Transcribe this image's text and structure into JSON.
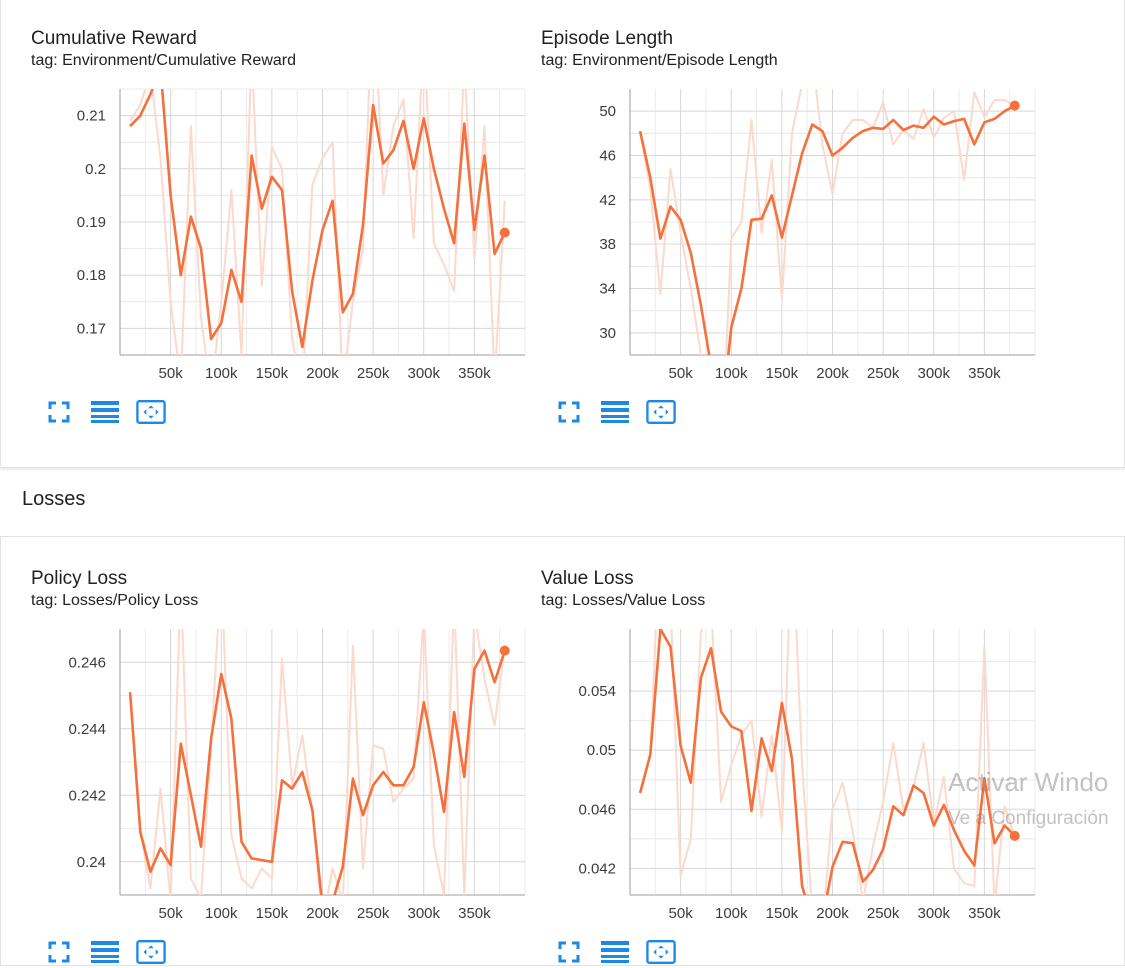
{
  "section": {
    "losses_title": "Losses"
  },
  "icons": [
    "fullscreen-icon",
    "data-table-icon",
    "fit-domain-icon"
  ],
  "colors": {
    "smoothed": "#f4703c",
    "raw": "#fcd9cc",
    "grid": "#d7d7d7"
  },
  "watermark": {
    "line1": "Activar Windo",
    "line2": "Ve a Configuración"
  },
  "chart_data": [
    {
      "id": "cumulative_reward",
      "type": "line",
      "title": "Cumulative Reward",
      "subtitle": "tag: Environment/Cumulative Reward",
      "xlim": [
        0,
        400000
      ],
      "ylim": [
        0.165,
        0.215
      ],
      "xticks": [
        50000,
        100000,
        150000,
        200000,
        250000,
        300000,
        350000
      ],
      "xtick_labels": [
        "50k",
        "100k",
        "150k",
        "200k",
        "250k",
        "300k",
        "350k"
      ],
      "yticks": [
        0.17,
        0.18,
        0.19,
        0.2,
        0.21
      ],
      "ytick_labels": [
        "0.17",
        "0.18",
        "0.19",
        "0.2",
        "0.21"
      ],
      "grid": true,
      "series": [
        {
          "role": "raw",
          "x": [
            10000,
            20000,
            30000,
            40000,
            50000,
            60000,
            70000,
            80000,
            90000,
            100000,
            110000,
            120000,
            130000,
            140000,
            150000,
            160000,
            170000,
            180000,
            190000,
            200000,
            210000,
            220000,
            230000,
            240000,
            250000,
            260000,
            270000,
            280000,
            290000,
            300000,
            310000,
            320000,
            330000,
            340000,
            350000,
            360000,
            370000,
            380000
          ],
          "y": [
            0.209,
            0.212,
            0.218,
            0.202,
            0.175,
            0.16,
            0.208,
            0.172,
            0.158,
            0.175,
            0.196,
            0.165,
            0.222,
            0.178,
            0.204,
            0.2,
            0.168,
            0.158,
            0.197,
            0.202,
            0.205,
            0.159,
            0.175,
            0.185,
            0.235,
            0.195,
            0.208,
            0.213,
            0.187,
            0.225,
            0.186,
            0.182,
            0.177,
            0.22,
            0.183,
            0.208,
            0.16,
            0.194
          ]
        },
        {
          "role": "smoothed",
          "x": [
            10000,
            20000,
            30000,
            40000,
            50000,
            60000,
            70000,
            80000,
            90000,
            100000,
            110000,
            120000,
            130000,
            140000,
            150000,
            160000,
            170000,
            180000,
            190000,
            200000,
            210000,
            220000,
            230000,
            240000,
            250000,
            260000,
            270000,
            280000,
            290000,
            300000,
            310000,
            320000,
            330000,
            340000,
            350000,
            360000,
            370000,
            380000
          ],
          "y": [
            0.208,
            0.21,
            0.214,
            0.219,
            0.195,
            0.18,
            0.191,
            0.185,
            0.168,
            0.171,
            0.181,
            0.175,
            0.2025,
            0.1925,
            0.1985,
            0.196,
            0.177,
            0.1665,
            0.179,
            0.1885,
            0.194,
            0.173,
            0.1765,
            0.1895,
            0.212,
            0.201,
            0.2035,
            0.209,
            0.2,
            0.2095,
            0.2,
            0.1925,
            0.186,
            0.2085,
            0.1885,
            0.2025,
            0.184,
            0.188
          ]
        }
      ]
    },
    {
      "id": "episode_length",
      "type": "line",
      "title": "Episode Length",
      "subtitle": "tag: Environment/Episode Length",
      "xlim": [
        0,
        400000
      ],
      "ylim": [
        28,
        52
      ],
      "xticks": [
        50000,
        100000,
        150000,
        200000,
        250000,
        300000,
        350000
      ],
      "xtick_labels": [
        "50k",
        "100k",
        "150k",
        "200k",
        "250k",
        "300k",
        "350k"
      ],
      "yticks": [
        30,
        34,
        38,
        42,
        46,
        50
      ],
      "ytick_labels": [
        "30",
        "34",
        "38",
        "42",
        "46",
        "50"
      ],
      "grid": true,
      "series": [
        {
          "role": "raw",
          "x": [
            10000,
            20000,
            30000,
            40000,
            50000,
            60000,
            70000,
            80000,
            90000,
            100000,
            110000,
            120000,
            130000,
            140000,
            150000,
            160000,
            170000,
            180000,
            190000,
            200000,
            210000,
            220000,
            230000,
            240000,
            250000,
            260000,
            270000,
            280000,
            290000,
            300000,
            310000,
            320000,
            330000,
            340000,
            350000,
            360000,
            370000,
            380000
          ],
          "y": [
            48.2,
            43,
            33.5,
            44.8,
            39,
            34,
            28,
            27,
            18,
            38.5,
            40,
            49.2,
            39,
            45.6,
            33,
            48,
            52.5,
            55,
            47,
            42.5,
            48,
            49.2,
            49.2,
            48.5,
            50.8,
            47,
            48.3,
            47.5,
            50.2,
            47.6,
            49.4,
            50,
            43.8,
            51.7,
            49.5,
            51,
            51,
            50.5
          ]
        },
        {
          "role": "smoothed",
          "x": [
            10000,
            20000,
            30000,
            40000,
            50000,
            60000,
            70000,
            80000,
            90000,
            100000,
            110000,
            120000,
            130000,
            140000,
            150000,
            160000,
            170000,
            180000,
            190000,
            200000,
            210000,
            220000,
            230000,
            240000,
            250000,
            260000,
            270000,
            280000,
            290000,
            300000,
            310000,
            320000,
            330000,
            340000,
            350000,
            360000,
            370000,
            380000
          ],
          "y": [
            48.2,
            44,
            38.5,
            41.4,
            40.2,
            37.2,
            32.5,
            27,
            22,
            30.5,
            34,
            40.2,
            40.3,
            42.4,
            38.6,
            42.4,
            46.2,
            48.8,
            48.2,
            46,
            46.7,
            47.6,
            48.2,
            48.5,
            48.4,
            49.2,
            48.3,
            48.7,
            48.5,
            49.5,
            48.8,
            49.1,
            49.3,
            47,
            49,
            49.3,
            50,
            50.5
          ]
        }
      ]
    },
    {
      "id": "policy_loss",
      "type": "line",
      "title": "Policy Loss",
      "subtitle": "tag: Losses/Policy Loss",
      "xlim": [
        0,
        400000
      ],
      "ylim": [
        0.239,
        0.247
      ],
      "xticks": [
        50000,
        100000,
        150000,
        200000,
        250000,
        300000,
        350000
      ],
      "xtick_labels": [
        "50k",
        "100k",
        "150k",
        "200k",
        "250k",
        "300k",
        "350k"
      ],
      "yticks": [
        0.24,
        0.242,
        0.244,
        0.246
      ],
      "ytick_labels": [
        "0.24",
        "0.242",
        "0.244",
        "0.246"
      ],
      "grid": true,
      "series": [
        {
          "role": "raw",
          "x": [
            10000,
            20000,
            30000,
            40000,
            50000,
            60000,
            70000,
            80000,
            90000,
            100000,
            110000,
            120000,
            130000,
            140000,
            150000,
            160000,
            170000,
            180000,
            190000,
            200000,
            210000,
            220000,
            230000,
            240000,
            250000,
            260000,
            270000,
            280000,
            290000,
            300000,
            310000,
            320000,
            330000,
            340000,
            350000,
            360000,
            370000,
            380000
          ],
          "y": [
            0.245,
            0.2409,
            0.2392,
            0.2422,
            0.2388,
            0.2485,
            0.2395,
            0.2389,
            0.2435,
            0.2488,
            0.2408,
            0.2395,
            0.2392,
            0.2398,
            0.2395,
            0.2461,
            0.2423,
            0.2438,
            0.2415,
            0.2382,
            0.2398,
            0.2388,
            0.2465,
            0.2398,
            0.2435,
            0.2434,
            0.2418,
            0.2422,
            0.2425,
            0.2475,
            0.2405,
            0.239,
            0.248,
            0.239,
            0.2475,
            0.2455,
            0.2441,
            0.2465
          ]
        },
        {
          "role": "smoothed",
          "x": [
            10000,
            20000,
            30000,
            40000,
            50000,
            60000,
            70000,
            80000,
            90000,
            100000,
            110000,
            120000,
            130000,
            140000,
            150000,
            160000,
            170000,
            180000,
            190000,
            200000,
            210000,
            220000,
            230000,
            240000,
            250000,
            260000,
            270000,
            280000,
            290000,
            300000,
            310000,
            320000,
            330000,
            340000,
            350000,
            360000,
            370000,
            380000
          ],
          "y": [
            0.2451,
            0.2409,
            0.2397,
            0.2404,
            0.2399,
            0.24355,
            0.242,
            0.24045,
            0.2437,
            0.24565,
            0.2443,
            0.2406,
            0.2401,
            0.24005,
            0.24,
            0.24245,
            0.2422,
            0.2427,
            0.24155,
            0.23865,
            0.2388,
            0.23985,
            0.2425,
            0.2414,
            0.2423,
            0.2427,
            0.2423,
            0.2423,
            0.24285,
            0.2448,
            0.24325,
            0.2415,
            0.2445,
            0.24255,
            0.2458,
            0.24635,
            0.2454,
            0.24635
          ]
        }
      ]
    },
    {
      "id": "value_loss",
      "type": "line",
      "title": "Value Loss",
      "subtitle": "tag: Losses/Value Loss",
      "xlim": [
        0,
        400000
      ],
      "ylim": [
        0.0402,
        0.0582
      ],
      "xticks": [
        50000,
        100000,
        150000,
        200000,
        250000,
        300000,
        350000
      ],
      "xtick_labels": [
        "50k",
        "100k",
        "150k",
        "200k",
        "250k",
        "300k",
        "350k"
      ],
      "yticks": [
        0.042,
        0.046,
        0.05,
        0.054
      ],
      "ytick_labels": [
        "0.042",
        "0.046",
        "0.05",
        "0.054"
      ],
      "grid": true,
      "series": [
        {
          "role": "raw",
          "x": [
            10000,
            20000,
            30000,
            40000,
            50000,
            60000,
            70000,
            80000,
            90000,
            100000,
            110000,
            120000,
            130000,
            140000,
            150000,
            160000,
            170000,
            180000,
            190000,
            200000,
            210000,
            220000,
            230000,
            240000,
            250000,
            260000,
            270000,
            280000,
            290000,
            300000,
            310000,
            320000,
            330000,
            340000,
            350000,
            360000,
            370000,
            380000
          ],
          "y": [
            0.0471,
            0.0498,
            0.065,
            0.06,
            0.0415,
            0.044,
            0.058,
            0.06,
            0.0465,
            0.049,
            0.051,
            0.052,
            0.0455,
            0.051,
            0.0445,
            0.065,
            0.049,
            0.039,
            0.038,
            0.046,
            0.0478,
            0.0445,
            0.0398,
            0.0435,
            0.0465,
            0.0505,
            0.046,
            0.0475,
            0.0505,
            0.045,
            0.0482,
            0.042,
            0.041,
            0.0408,
            0.057,
            0.0395,
            0.0462,
            0.0442
          ]
        },
        {
          "role": "smoothed",
          "x": [
            10000,
            20000,
            30000,
            40000,
            50000,
            60000,
            70000,
            80000,
            90000,
            100000,
            110000,
            120000,
            130000,
            140000,
            150000,
            160000,
            170000,
            180000,
            190000,
            200000,
            210000,
            220000,
            230000,
            240000,
            250000,
            260000,
            270000,
            280000,
            290000,
            300000,
            310000,
            320000,
            330000,
            340000,
            350000,
            360000,
            370000,
            380000
          ],
          "y": [
            0.0471,
            0.0497,
            0.0582,
            0.057,
            0.0503,
            0.0478,
            0.0549,
            0.0569,
            0.0526,
            0.0516,
            0.0513,
            0.0459,
            0.0508,
            0.0486,
            0.0532,
            0.0494,
            0.0408,
            0.0385,
            0.0385,
            0.0421,
            0.0438,
            0.0437,
            0.0411,
            0.0419,
            0.0433,
            0.0462,
            0.0456,
            0.0476,
            0.0471,
            0.0449,
            0.0463,
            0.0446,
            0.0432,
            0.0422,
            0.0481,
            0.0437,
            0.0449,
            0.0442
          ]
        }
      ]
    }
  ]
}
